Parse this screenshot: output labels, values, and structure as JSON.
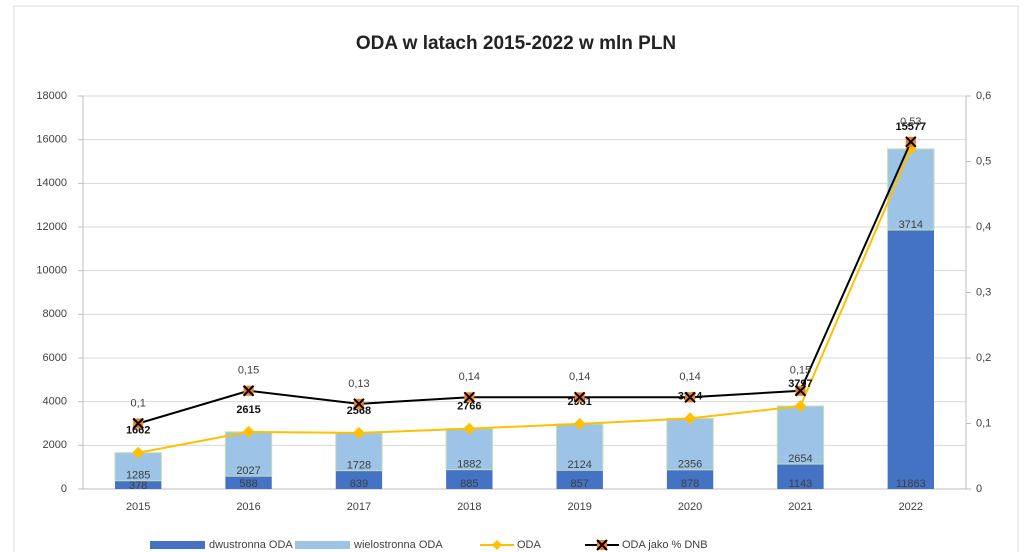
{
  "chart_data": {
    "type": "bar",
    "title": "ODA w latach 2015-2022 w mln PLN",
    "categories": [
      "2015",
      "2016",
      "2017",
      "2018",
      "2019",
      "2020",
      "2021",
      "2022"
    ],
    "stacked": true,
    "series": [
      {
        "name": "dwustronna ODA",
        "type": "bar",
        "color": "#4472c4",
        "values": [
          378,
          588,
          839,
          885,
          857,
          878,
          1143,
          11863
        ]
      },
      {
        "name": "wielostronna ODA",
        "type": "bar",
        "color": "#9dc3e6",
        "values": [
          1285,
          2027,
          1728,
          1882,
          2124,
          2356,
          2654,
          3714
        ]
      },
      {
        "name": "ODA",
        "type": "line",
        "color": "#ffc000",
        "values": [
          1662,
          2615,
          2568,
          2766,
          2981,
          3234,
          3797,
          15577
        ]
      },
      {
        "name": "ODA jako % DNB",
        "type": "line",
        "axis": "y2",
        "color": "#000000",
        "marker_color": "#ed7d31",
        "values": [
          0.1,
          0.15,
          0.13,
          0.14,
          0.14,
          0.14,
          0.15,
          0.53
        ],
        "value_labels": [
          "0,1",
          "0,15",
          "0,13",
          "0,14",
          "0,14",
          "0,14",
          "0,15",
          "0,53"
        ]
      }
    ],
    "ylim": [
      0,
      18000
    ],
    "yticks": [
      0,
      2000,
      4000,
      6000,
      8000,
      10000,
      12000,
      14000,
      16000,
      18000
    ],
    "y2lim": [
      0,
      0.6
    ],
    "y2ticks": [
      0,
      {
        "value": 0.1,
        "label": "0,1"
      },
      {
        "value": 0.2,
        "label": "0,2"
      },
      {
        "value": 0.3,
        "label": "0,3"
      },
      {
        "value": 0.4,
        "label": "0,4"
      },
      {
        "value": 0.5,
        "label": "0,5"
      },
      {
        "value": 0.6,
        "label": "0,6"
      }
    ],
    "grid": true,
    "legend": "bottom"
  }
}
